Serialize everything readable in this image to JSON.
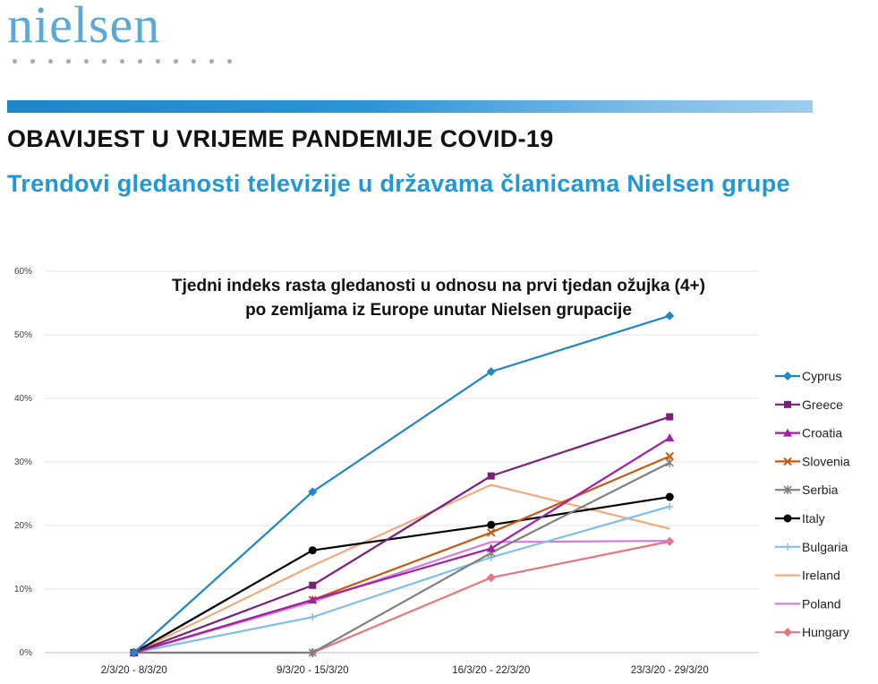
{
  "header": {
    "logo_text": "nielsen",
    "heading": "OBAVIJEST U VRIJEME PANDEMIJE COVID-19",
    "subheading": "Trendovi gledanosti televizije u državama članicama Nielsen grupe"
  },
  "colors": {
    "banner": "#2c95d6",
    "subheading": "#1f98d8"
  },
  "chart_data": {
    "type": "line",
    "title": "Tjedni indeks rasta gledanosti u odnosu na prvi tjedan ožujka (4+)",
    "subtitle": "po zemljama iz Europe unutar Nielsen grupacije",
    "categories": [
      "2/3/20 - 8/3/20",
      "9/3/20 - 15/3/20",
      "16/3/20 - 22/3/20",
      "23/3/20 - 29/3/20"
    ],
    "y_ticks": [
      "0%",
      "10%",
      "20%",
      "30%",
      "40%",
      "50%",
      "60%"
    ],
    "ylim": [
      0,
      60
    ],
    "y_unit": "%",
    "grid": true,
    "legend_position": "right",
    "series": [
      {
        "name": "Cyprus",
        "color": "#1f86c8",
        "marker": "diamond",
        "values": [
          0,
          25.3,
          44.2,
          53
        ]
      },
      {
        "name": "Greece",
        "color": "#7b1f7b",
        "marker": "square",
        "values": [
          0,
          10.6,
          27.8,
          37.1
        ]
      },
      {
        "name": "Croatia",
        "color": "#a41fa8",
        "marker": "triangle",
        "values": [
          0,
          8.3,
          16.4,
          33.8
        ]
      },
      {
        "name": "Slovenia",
        "color": "#c55a11",
        "marker": "x",
        "values": [
          0,
          8.3,
          18.9,
          30.9
        ]
      },
      {
        "name": "Serbia",
        "color": "#7f7f7f",
        "marker": "star",
        "values": [
          0,
          0,
          15.7,
          29.9
        ]
      },
      {
        "name": "Italy",
        "color": "#000000",
        "marker": "circle",
        "values": [
          0,
          16.1,
          20.1,
          24.5
        ]
      },
      {
        "name": "Bulgaria",
        "color": "#7fbfe8",
        "marker": "plus",
        "values": [
          0,
          5.6,
          15.0,
          23.0
        ]
      },
      {
        "name": "Ireland",
        "color": "#f4a97a",
        "marker": "none",
        "values": [
          0,
          13.7,
          26.4,
          19.5
        ]
      },
      {
        "name": "Poland",
        "color": "#d27fd8",
        "marker": "none",
        "values": [
          0,
          8.0,
          17.4,
          17.6
        ]
      },
      {
        "name": "Hungary",
        "color": "#e8747c",
        "marker": "diamond",
        "values": [
          0,
          0,
          11.8,
          17.5
        ]
      }
    ]
  }
}
